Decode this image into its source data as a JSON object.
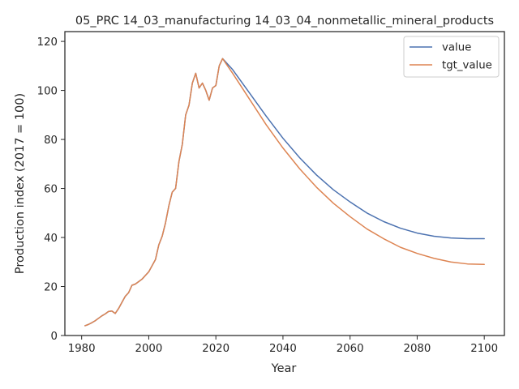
{
  "chart_data": {
    "type": "line",
    "title": "05_PRC 14_03_manufacturing 14_03_04_nonmetallic_mineral_products",
    "xlabel": "Year",
    "ylabel": "Production index (2017 = 100)",
    "xlim": [
      1975,
      2106
    ],
    "ylim": [
      0,
      124
    ],
    "xticks": [
      1980,
      2000,
      2020,
      2040,
      2060,
      2080,
      2100
    ],
    "yticks": [
      0,
      20,
      40,
      60,
      80,
      100,
      120
    ],
    "grid": false,
    "legend": "top-right",
    "series": [
      {
        "name": "value",
        "color": "#4c72b0",
        "x": [
          1981,
          1982,
          1983,
          1984,
          1985,
          1986,
          1987,
          1988,
          1989,
          1990,
          1991,
          1992,
          1993,
          1994,
          1995,
          1996,
          1997,
          1998,
          1999,
          2000,
          2001,
          2002,
          2003,
          2004,
          2005,
          2006,
          2007,
          2008,
          2009,
          2010,
          2011,
          2012,
          2013,
          2014,
          2015,
          2016,
          2017,
          2018,
          2019,
          2020,
          2021,
          2022,
          2025,
          2030,
          2035,
          2040,
          2045,
          2050,
          2055,
          2060,
          2065,
          2070,
          2075,
          2080,
          2085,
          2090,
          2095,
          2100
        ],
        "y": [
          4,
          4.5,
          5.2,
          6,
          7,
          8,
          8.8,
          9.8,
          10,
          9,
          11,
          13.5,
          16,
          17.5,
          20.5,
          21,
          22,
          23,
          24.5,
          26,
          28.5,
          31,
          37,
          40.5,
          46,
          53,
          58.5,
          60,
          71,
          78,
          90,
          94,
          103,
          107,
          101,
          103,
          100,
          96,
          101,
          102,
          110,
          113,
          108.5,
          99,
          89.5,
          80.5,
          72.5,
          65.5,
          59.5,
          54.5,
          50,
          46.5,
          43.8,
          41.8,
          40.5,
          39.8,
          39.5,
          39.5
        ]
      },
      {
        "name": "tgt_value",
        "color": "#dd8452",
        "x": [
          1981,
          1982,
          1983,
          1984,
          1985,
          1986,
          1987,
          1988,
          1989,
          1990,
          1991,
          1992,
          1993,
          1994,
          1995,
          1996,
          1997,
          1998,
          1999,
          2000,
          2001,
          2002,
          2003,
          2004,
          2005,
          2006,
          2007,
          2008,
          2009,
          2010,
          2011,
          2012,
          2013,
          2014,
          2015,
          2016,
          2017,
          2018,
          2019,
          2020,
          2021,
          2022,
          2025,
          2030,
          2035,
          2040,
          2045,
          2050,
          2055,
          2060,
          2065,
          2070,
          2075,
          2080,
          2085,
          2090,
          2095,
          2100
        ],
        "y": [
          4,
          4.5,
          5.2,
          6,
          7,
          8,
          8.8,
          9.8,
          10,
          9,
          11,
          13.5,
          16,
          17.5,
          20.5,
          21,
          22,
          23,
          24.5,
          26,
          28.5,
          31,
          37,
          40.5,
          46,
          53,
          58.5,
          60,
          71,
          78,
          90,
          94,
          103,
          107,
          101,
          103,
          100,
          96,
          101,
          102,
          110,
          113,
          107,
          96.5,
          86,
          76.5,
          68,
          60.5,
          54,
          48.5,
          43.5,
          39.5,
          36,
          33.5,
          31.5,
          30,
          29.2,
          29
        ]
      }
    ]
  }
}
